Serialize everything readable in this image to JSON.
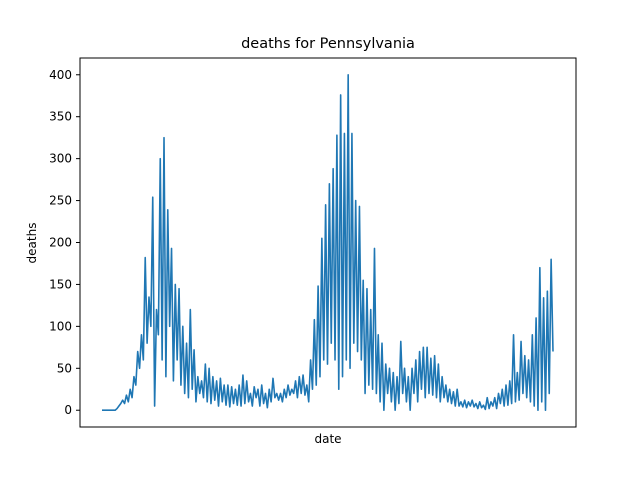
{
  "chart_data": {
    "type": "line",
    "title": "deaths for Pennsylvania",
    "xlabel": "date",
    "ylabel": "deaths",
    "ylim": [
      -20,
      420
    ],
    "yticks": [
      0,
      50,
      100,
      150,
      200,
      250,
      300,
      350,
      400
    ],
    "grid": false,
    "legend": "none",
    "series_color": "#1f77b4",
    "series": [
      {
        "values": [
          0,
          0,
          0,
          0,
          0,
          0,
          0,
          0,
          2,
          5,
          8,
          12,
          8,
          18,
          10,
          25,
          15,
          40,
          30,
          70,
          50,
          90,
          60,
          182,
          80,
          135,
          100,
          254,
          5,
          120,
          90,
          300,
          60,
          325,
          40,
          239,
          100,
          193,
          35,
          150,
          60,
          145,
          30,
          100,
          20,
          80,
          15,
          120,
          25,
          72,
          10,
          40,
          20,
          35,
          15,
          55,
          10,
          50,
          8,
          40,
          12,
          35,
          5,
          38,
          10,
          30,
          6,
          30,
          4,
          28,
          8,
          25,
          6,
          30,
          5,
          42,
          8,
          35,
          10,
          20,
          5,
          28,
          15,
          25,
          5,
          30,
          8,
          20,
          3,
          25,
          10,
          38,
          15,
          20,
          12,
          20,
          10,
          25,
          15,
          30,
          18,
          25,
          20,
          35,
          15,
          40,
          20,
          42,
          18,
          30,
          10,
          60,
          25,
          108,
          30,
          148,
          40,
          205,
          60,
          245,
          55,
          270,
          80,
          288,
          60,
          328,
          25,
          376,
          40,
          330,
          60,
          400,
          50,
          330,
          80,
          250,
          70,
          243,
          60,
          155,
          20,
          145,
          30,
          120,
          25,
          193,
          20,
          90,
          10,
          80,
          0,
          55,
          20,
          50,
          10,
          45,
          0,
          40,
          8,
          82,
          20,
          50,
          10,
          40,
          0,
          50,
          20,
          60,
          10,
          70,
          25,
          75,
          15,
          75,
          20,
          62,
          18,
          65,
          15,
          55,
          10,
          40,
          15,
          30,
          10,
          25,
          8,
          22,
          5,
          25,
          5,
          10,
          4,
          12,
          3,
          10,
          5,
          12,
          4,
          8,
          2,
          10,
          3,
          6,
          1,
          15,
          2,
          10,
          5,
          15,
          2,
          20,
          8,
          25,
          5,
          30,
          6,
          35,
          8,
          90,
          10,
          45,
          12,
          82,
          20,
          65,
          15,
          60,
          10,
          90,
          5,
          110,
          0,
          170,
          10,
          134,
          0,
          142,
          20,
          180,
          70
        ]
      }
    ]
  }
}
